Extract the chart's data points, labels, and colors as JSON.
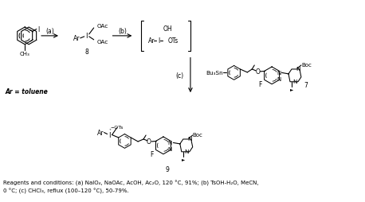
{
  "bg_color": "#ffffff",
  "fig_width": 4.58,
  "fig_height": 2.55,
  "dpi": 100,
  "reagents_line1": "Reagents and conditions: (a) NaIO₄, NaOAc, AcOH, Ac₂O, 120 °C, 91%; (b) TsOH-H₂O, MeCN,",
  "reagents_line2": "0 °C; (c) CHCl₃, reflux (100–120 °C), 50-79%.",
  "ar_label": "Ar = toluene",
  "compound8": "8",
  "compound7": "7",
  "compound9": "9",
  "step_a": "(a)",
  "step_b": "(b)",
  "step_c": "(c)"
}
